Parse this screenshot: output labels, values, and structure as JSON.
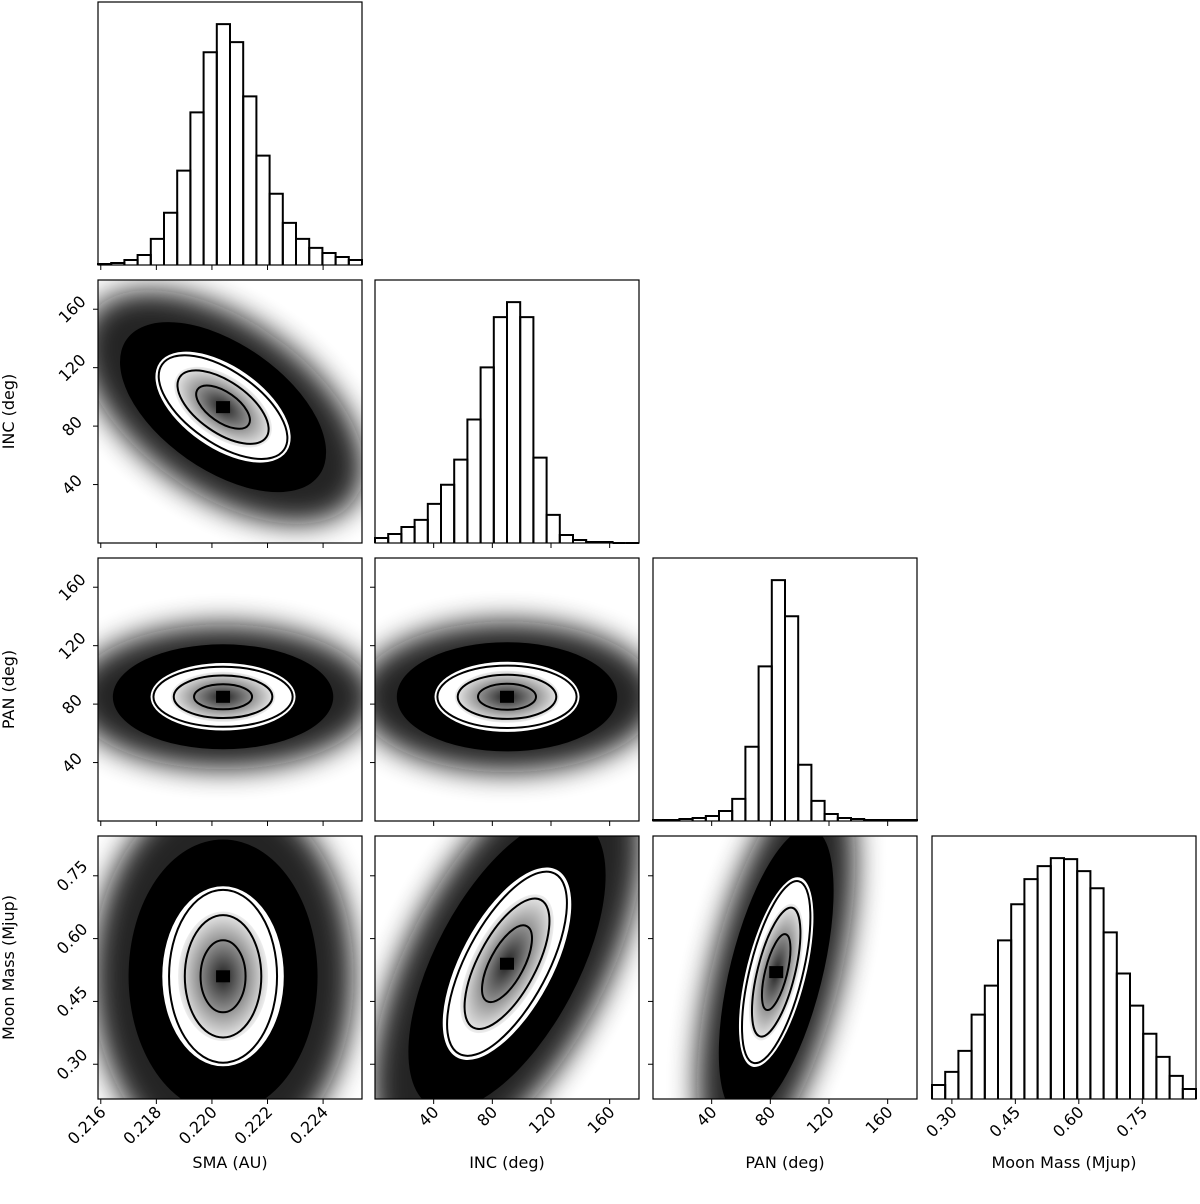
{
  "chart_data": {
    "type": "corner",
    "params": [
      {
        "label": "SMA (AU)",
        "lim": [
          0.2159,
          0.2254
        ],
        "ticks": [
          0.216,
          0.218,
          {
            "value": 0.22,
            "label": "0.220"
          },
          0.222,
          0.224
        ]
      },
      {
        "label": "INC (deg)",
        "lim": [
          0,
          180
        ],
        "ticks": [
          40,
          80,
          120,
          160
        ]
      },
      {
        "label": "PAN (deg)",
        "lim": [
          0,
          180
        ],
        "ticks": [
          40,
          80,
          120,
          160
        ]
      },
      {
        "label": "Moon Mass (Mjup)",
        "lim": [
          0.253,
          0.877
        ],
        "ylim": [
          0.217,
          0.845
        ],
        "ticks": [
          {
            "value": 0.3,
            "label": "0.30"
          },
          0.45,
          {
            "value": 0.6,
            "label": "0.60"
          },
          0.75
        ]
      }
    ],
    "histograms": [
      {
        "bins": [
          0.2159,
          0.216375,
          0.21685,
          0.217325,
          0.2178,
          0.218275,
          0.21875,
          0.219225,
          0.2197,
          0.220175,
          0.22065,
          0.221125,
          0.2216,
          0.222075,
          0.22255,
          0.223025,
          0.2235,
          0.223975,
          0.22445,
          0.224925,
          0.2254
        ],
        "values": [
          1,
          2,
          5,
          10,
          26,
          52,
          94,
          152,
          212,
          240,
          222,
          168,
          109,
          71,
          42,
          26,
          17,
          12,
          8,
          5
        ]
      },
      {
        "bins": [
          0,
          9,
          18,
          27,
          36,
          45,
          54,
          63,
          72,
          81,
          90,
          99,
          108,
          117,
          126,
          135,
          144,
          153,
          162,
          171,
          180
        ],
        "values": [
          5,
          9,
          16,
          23,
          39,
          58,
          83,
          123,
          175,
          225,
          240,
          225,
          85,
          28,
          8,
          3,
          1,
          1,
          0,
          0
        ]
      },
      {
        "bins": [
          0,
          9,
          18,
          27,
          36,
          45,
          54,
          63,
          72,
          81,
          90,
          99,
          108,
          117,
          126,
          135,
          144,
          153,
          162,
          171,
          180
        ],
        "values": [
          1,
          1,
          2,
          3,
          5,
          10,
          22,
          74,
          154,
          240,
          204,
          56,
          20,
          7,
          3,
          2,
          1,
          1,
          1,
          1
        ]
      },
      {
        "bins": [
          0.253,
          0.2842,
          0.3154,
          0.3466,
          0.3778,
          0.409,
          0.4402,
          0.4714,
          0.5026,
          0.5338,
          0.565,
          0.5962,
          0.6274,
          0.6586,
          0.6898,
          0.721,
          0.7522,
          0.7834,
          0.8146,
          0.8458,
          0.877
        ],
        "values": [
          14,
          27,
          48,
          84,
          113,
          158,
          194,
          219,
          232,
          240,
          239,
          227,
          210,
          166,
          125,
          93,
          65,
          42,
          23,
          10
        ]
      }
    ],
    "hist_ylim": [
      0,
      262
    ],
    "pairs": [
      {
        "x": 0,
        "y": 1,
        "peak": [
          0.2204,
          93
        ]
      },
      {
        "x": 0,
        "y": 2,
        "peak": [
          0.2204,
          85
        ]
      },
      {
        "x": 1,
        "y": 2,
        "peak": [
          90,
          85
        ]
      },
      {
        "x": 0,
        "y": 3,
        "peak": [
          0.2204,
          0.51
        ]
      },
      {
        "x": 1,
        "y": 3,
        "peak": [
          90,
          0.54
        ]
      },
      {
        "x": 2,
        "y": 3,
        "peak": [
          84,
          0.52
        ]
      }
    ]
  }
}
